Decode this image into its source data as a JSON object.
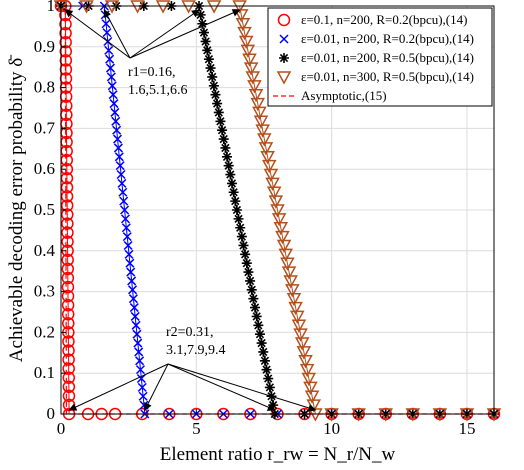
{
  "chart_data": {
    "type": "line",
    "xlabel": "Element ratio r_rw = N_r/N_w",
    "ylabel": "Achievable decoding error probability δ̄",
    "xlim": [
      0,
      16
    ],
    "ylim": [
      0,
      1
    ],
    "xticks": [
      0,
      5,
      10,
      15
    ],
    "yticks": [
      0,
      0.1,
      0.2,
      0.3,
      0.4,
      0.5,
      0.6,
      0.7,
      0.8,
      0.9,
      1
    ],
    "grid": true,
    "legend_position": "top-right",
    "series": [
      {
        "name": "ε=0.1, n=200, R=0.2(bpcu),(14)",
        "color": "#ff0000",
        "marker": "circle",
        "x": [
          0,
          0.16,
          0.3,
          1.0,
          1.5,
          2.0,
          3.0,
          4.0,
          5.0,
          6.0,
          7.0,
          8.0,
          9.0,
          10.0,
          11.0,
          12.0,
          13.0,
          14.0,
          15.0,
          16.0
        ],
        "y": [
          1,
          1,
          0,
          0,
          0,
          0,
          0,
          0,
          0,
          0,
          0,
          0,
          0,
          0,
          0,
          0,
          0,
          0,
          0,
          0
        ]
      },
      {
        "name": "ε=0.01, n=200, R=0.2(bpcu),(14)",
        "color": "#0000ff",
        "marker": "x",
        "x": [
          0,
          1.6,
          3.1,
          4.0,
          5.0,
          6.0,
          7.0,
          8.0,
          9.0,
          10.0,
          11.0,
          12.0,
          13.0,
          14.0,
          15.0,
          16.0
        ],
        "y": [
          1,
          1,
          0,
          0,
          0,
          0,
          0,
          0,
          0,
          0,
          0,
          0,
          0,
          0,
          0,
          0
        ]
      },
      {
        "name": "ε=0.01, n=200, R=0.5(bpcu),(14)",
        "color": "#000000",
        "marker": "star",
        "x": [
          0,
          5.1,
          7.9,
          9.0,
          10.0,
          11.0,
          12.0,
          13.0,
          14.0,
          15.0,
          16.0
        ],
        "y": [
          1,
          1,
          0,
          0,
          0,
          0,
          0,
          0,
          0,
          0,
          0
        ]
      },
      {
        "name": "ε=0.01, n=300, R=0.5(bpcu),(14)",
        "color": "#b5501c",
        "marker": "triangle-down",
        "x": [
          0,
          6.6,
          9.4,
          10.0,
          11.0,
          12.0,
          13.0,
          14.0,
          15.0,
          16.0
        ],
        "y": [
          1,
          1,
          0,
          0,
          0,
          0,
          0,
          0,
          0,
          0
        ]
      },
      {
        "name": "Asymptotic,(15)",
        "color": "#ff0000",
        "marker": "none",
        "dash": "dashed",
        "x": [
          0,
          0.16,
          0.2,
          16
        ],
        "y": [
          1,
          1,
          0,
          0
        ]
      }
    ],
    "annotations": [
      {
        "label_lines": [
          "r1=0.16,",
          "1.6,5.1,6.6"
        ],
        "targets": [
          [
            0.16,
            1
          ],
          [
            1.6,
            1
          ],
          [
            5.1,
            1
          ],
          [
            6.6,
            1
          ]
        ]
      },
      {
        "label_lines": [
          "r2=0.31,",
          "3.1,7.9,9.4"
        ],
        "targets": [
          [
            0.31,
            0
          ],
          [
            3.1,
            0
          ],
          [
            7.9,
            0
          ],
          [
            9.4,
            0
          ]
        ]
      }
    ]
  }
}
